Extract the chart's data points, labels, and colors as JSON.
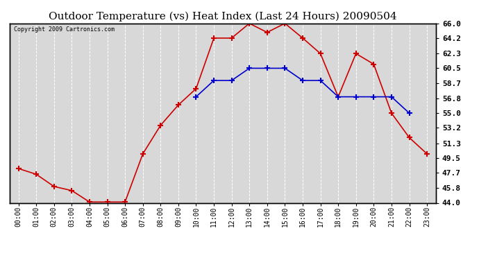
{
  "title": "Outdoor Temperature (vs) Heat Index (Last 24 Hours) 20090504",
  "copyright": "Copyright 2009 Cartronics.com",
  "hours": [
    "00:00",
    "01:00",
    "02:00",
    "03:00",
    "04:00",
    "05:00",
    "06:00",
    "07:00",
    "08:00",
    "09:00",
    "10:00",
    "11:00",
    "12:00",
    "13:00",
    "14:00",
    "15:00",
    "16:00",
    "17:00",
    "18:00",
    "19:00",
    "20:00",
    "21:00",
    "22:00",
    "23:00"
  ],
  "temp": [
    48.2,
    47.5,
    46.0,
    45.5,
    44.1,
    44.1,
    44.1,
    50.0,
    53.5,
    56.0,
    58.0,
    64.2,
    64.2,
    66.0,
    64.9,
    66.0,
    64.2,
    62.3,
    57.0,
    62.3,
    61.0,
    55.0,
    52.0,
    50.0
  ],
  "heat_index": [
    null,
    null,
    null,
    null,
    null,
    null,
    null,
    null,
    null,
    null,
    57.0,
    59.0,
    59.0,
    60.5,
    60.5,
    60.5,
    59.0,
    59.0,
    57.0,
    57.0,
    57.0,
    57.0,
    55.0,
    null
  ],
  "temp_color": "#cc0000",
  "heat_color": "#0000cc",
  "bg_color": "#ffffff",
  "plot_bg_color": "#d8d8d8",
  "grid_color": "#ffffff",
  "ylim": [
    44.0,
    66.0
  ],
  "yticks": [
    44.0,
    45.8,
    47.7,
    49.5,
    51.3,
    53.2,
    55.0,
    56.8,
    58.7,
    60.5,
    62.3,
    64.2,
    66.0
  ],
  "title_fontsize": 11,
  "copyright_fontsize": 6,
  "marker": "+",
  "markersize": 6,
  "markeredgewidth": 1.5,
  "linewidth": 1.2
}
